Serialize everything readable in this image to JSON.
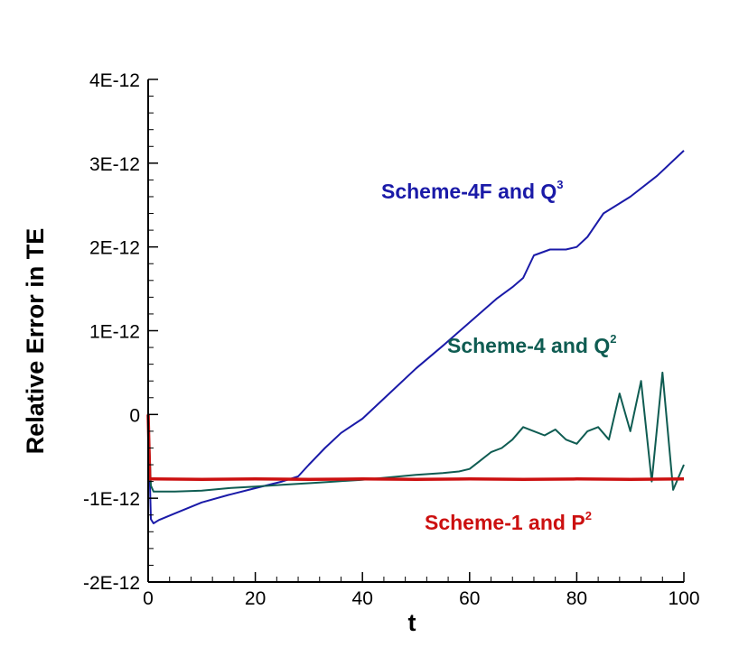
{
  "chart_data": {
    "type": "line",
    "xlabel": "t",
    "ylabel": "Relative Error in TE",
    "xlim": [
      0,
      100
    ],
    "ylim": [
      -2e-12,
      4e-12
    ],
    "x_ticks": [
      0,
      20,
      40,
      60,
      80,
      100
    ],
    "x_tick_labels": [
      "0",
      "20",
      "40",
      "60",
      "80",
      "100"
    ],
    "y_ticks": [
      -2e-12,
      -1e-12,
      0,
      1e-12,
      2e-12,
      3e-12,
      4e-12
    ],
    "y_tick_labels": [
      "-2E-12",
      "-1E-12",
      "0",
      "1E-12",
      "2E-12",
      "3E-12",
      "4E-12"
    ],
    "grid": false,
    "annotations": [
      {
        "series": "scheme4f",
        "text": "Scheme-4F and Q",
        "sup": "3",
        "color": "#1a1aa8"
      },
      {
        "series": "scheme4",
        "text": "Scheme-4 and Q",
        "sup": "2",
        "color": "#0f5c52"
      },
      {
        "series": "scheme1",
        "text": "Scheme-1 and P",
        "sup": "2",
        "color": "#cc1010"
      }
    ],
    "series": [
      {
        "id": "scheme4f",
        "color": "#1a1aa8",
        "x": [
          0,
          0.5,
          1,
          2,
          5,
          10,
          15,
          20,
          25,
          28,
          30,
          33,
          36,
          40,
          45,
          50,
          55,
          60,
          65,
          68,
          70,
          72,
          75,
          78,
          80,
          82,
          85,
          90,
          95,
          100
        ],
        "y": [
          0,
          -1.25e-12,
          -1.3e-12,
          -1.26e-12,
          -1.18e-12,
          -1.05e-12,
          -9.6e-13,
          -8.8e-13,
          -8e-13,
          -7.4e-13,
          -6e-13,
          -4e-13,
          -2.2e-13,
          -5e-14,
          2.5e-13,
          5.5e-13,
          8.2e-13,
          1.1e-12,
          1.38e-12,
          1.52e-12,
          1.63e-12,
          1.9e-12,
          1.97e-12,
          1.97e-12,
          2e-12,
          2.12e-12,
          2.4e-12,
          2.6e-12,
          2.85e-12,
          3.15e-12
        ]
      },
      {
        "id": "scheme4",
        "color": "#0f5c52",
        "x": [
          0,
          0.5,
          1,
          2,
          5,
          10,
          15,
          20,
          25,
          30,
          35,
          40,
          45,
          50,
          55,
          58,
          60,
          62,
          64,
          66,
          68,
          70,
          72,
          74,
          76,
          78,
          80,
          82,
          84,
          86,
          88,
          90,
          92,
          94,
          96,
          98,
          100
        ],
        "y": [
          0,
          -8.5e-13,
          -9.2e-13,
          -9.2e-13,
          -9.2e-13,
          -9.1e-13,
          -8.8e-13,
          -8.6e-13,
          -8.4e-13,
          -8.2e-13,
          -8e-13,
          -7.8e-13,
          -7.5e-13,
          -7.2e-13,
          -7e-13,
          -6.8e-13,
          -6.5e-13,
          -5.5e-13,
          -4.5e-13,
          -4e-13,
          -3e-13,
          -1.5e-13,
          -2e-13,
          -2.5e-13,
          -1.8e-13,
          -3e-13,
          -3.5e-13,
          -2e-13,
          -1.5e-13,
          -3e-13,
          2.5e-13,
          -2e-13,
          4e-13,
          -8e-13,
          5e-13,
          -9e-13,
          -6e-13
        ]
      },
      {
        "id": "scheme1",
        "color": "#cc1010",
        "x": [
          0,
          0.3,
          1,
          10,
          20,
          30,
          40,
          50,
          60,
          70,
          80,
          90,
          100
        ],
        "y": [
          0,
          -7.7e-13,
          -7.7e-13,
          -7.75e-13,
          -7.7e-13,
          -7.75e-13,
          -7.7e-13,
          -7.75e-13,
          -7.7e-13,
          -7.75e-13,
          -7.7e-13,
          -7.75e-13,
          -7.7e-13
        ]
      }
    ]
  }
}
